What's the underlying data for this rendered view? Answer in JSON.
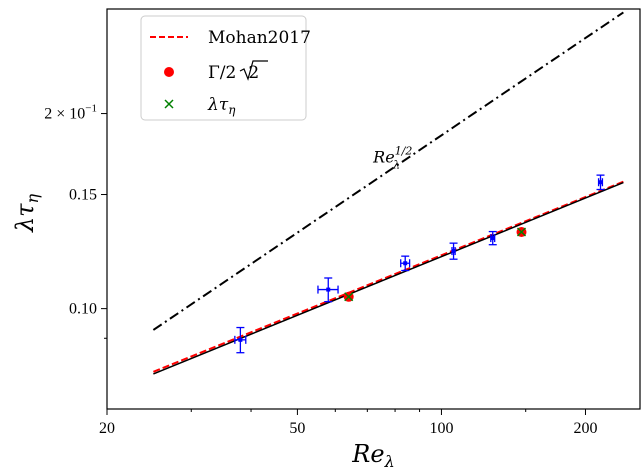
{
  "chart_data": {
    "type": "scatter",
    "x_scale": "log",
    "y_scale": "log",
    "xlim": [
      20,
      260
    ],
    "ylim": [
      0.07,
      0.29
    ],
    "xlabel_base": "Re",
    "xlabel_sub": "λ",
    "ylabel_base": "λτ",
    "ylabel_sub": "η",
    "x_ticks": [
      {
        "value": 20,
        "label": "20"
      },
      {
        "value": 50,
        "label": "50"
      },
      {
        "value": 100,
        "label": "100"
      },
      {
        "value": 200,
        "label": "200"
      }
    ],
    "y_ticks": [
      {
        "value": 0.1,
        "label": "0.10"
      },
      {
        "value": 0.15,
        "label": "0.15"
      },
      {
        "value": 0.2,
        "label_base": "2 × 10",
        "label_exp": "−1"
      }
    ],
    "y_minor_ticks": [
      0.09
    ],
    "legend": {
      "position": "upper left",
      "entries": [
        {
          "label": "Mohan2017",
          "marker": "dashed-line",
          "color": "#ff0000"
        },
        {
          "label_pre": "Γ/2",
          "label_sqrt": "2",
          "marker": "circle",
          "color": "#ff0000"
        },
        {
          "label_base": "λτ",
          "label_sub": "η",
          "marker": "x",
          "color": "#008000"
        }
      ]
    },
    "annotation": {
      "base": "Re",
      "sub": "λ",
      "sup": "1/2",
      "anchor": [
        72,
        0.168
      ]
    },
    "series": [
      {
        "name": "Mohan2017",
        "kind": "line",
        "style": "dashed",
        "color": "#ff0000",
        "x": [
          25,
          240
        ],
        "y": [
          0.0799,
          0.157
        ]
      },
      {
        "kind": "line",
        "style": "fit",
        "color": "#000000",
        "x": [
          25,
          240
        ],
        "y": [
          0.0793,
          0.1565
        ]
      },
      {
        "kind": "line",
        "style": "dashdot",
        "color": "#000000",
        "x": [
          25,
          240
        ],
        "y": [
          0.0927,
          0.2865
        ]
      },
      {
        "name": "Γ/2√2",
        "kind": "points",
        "marker": "circle",
        "color": "#ff0000",
        "x": [
          64,
          147
        ],
        "y": [
          0.1043,
          0.1313
        ]
      },
      {
        "name": "λτη",
        "kind": "points",
        "marker": "x",
        "color": "#008000",
        "x": [
          64,
          147
        ],
        "y": [
          0.1043,
          0.1313
        ]
      },
      {
        "kind": "errorbars",
        "marker": "square",
        "color": "#0000ff",
        "points": [
          {
            "x": 38,
            "y": 0.0895,
            "yerr": 0.004,
            "xerr": 1.0
          },
          {
            "x": 58,
            "y": 0.107,
            "yerr": 0.0045,
            "xerr": 2.8
          },
          {
            "x": 84,
            "y": 0.1175,
            "yerr": 0.003,
            "xerr": 1.8
          },
          {
            "x": 106,
            "y": 0.1227,
            "yerr": 0.0035,
            "xerr": 0.8
          },
          {
            "x": 128,
            "y": 0.1285,
            "yerr": 0.003,
            "xerr": 1.2
          },
          {
            "x": 215,
            "y": 0.1567,
            "yerr": 0.004,
            "xerr": 2.0
          }
        ]
      }
    ]
  }
}
